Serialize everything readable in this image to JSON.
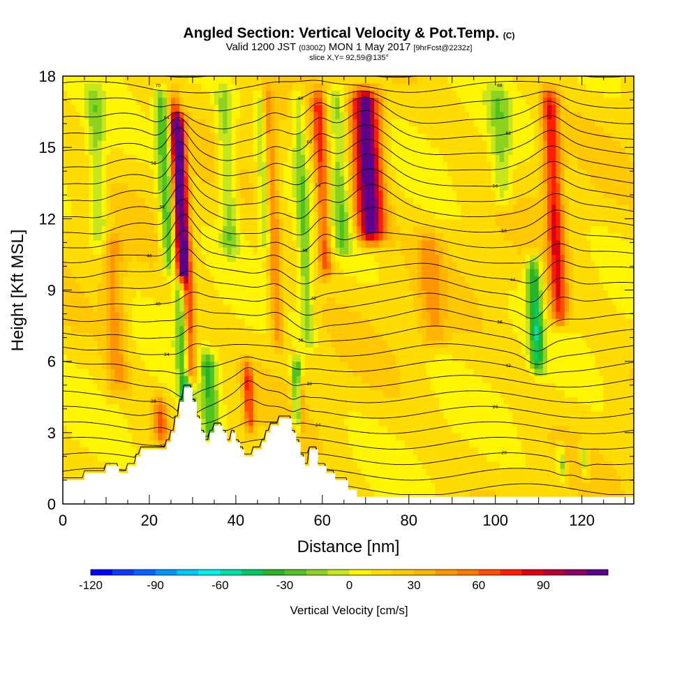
{
  "header": {
    "title": "Angled Section: Vertical Velocity & Pot.Temp.",
    "title_suffix": "(C)",
    "valid_prefix": "Valid 1200 JST",
    "valid_zulu": "(0300Z)",
    "valid_date": "MON 1 May 2017",
    "forecast": "[9hrFcst@2232z]",
    "slice": "slice X,Y= 92,59@135°"
  },
  "chart_data": {
    "type": "heatmap",
    "title": "Angled Section: Vertical Velocity & Pot.Temp.",
    "xlabel": "Distance [nm]",
    "ylabel": "Height [Kft MSL]",
    "xlim": [
      0,
      132
    ],
    "ylim": [
      0,
      18
    ],
    "x_ticks": [
      0,
      20,
      40,
      60,
      80,
      100,
      120
    ],
    "y_ticks": [
      0,
      3,
      6,
      9,
      12,
      15,
      18
    ],
    "colorbar": {
      "label": "Vertical Velocity [cm/s]",
      "min": -120,
      "max": 110,
      "step": 10,
      "ticks": [
        -120,
        -90,
        -60,
        -30,
        0,
        30,
        60,
        90
      ],
      "colors": [
        "#0000ff",
        "#0a3cf5",
        "#0064ff",
        "#0096ff",
        "#00c8ff",
        "#00f0f0",
        "#00dcaa",
        "#00c864",
        "#28b428",
        "#50c31e",
        "#8cd21e",
        "#c8e61e",
        "#fff500",
        "#ffdc00",
        "#ffc800",
        "#ffb400",
        "#ff9600",
        "#ff7800",
        "#ff5000",
        "#ff1e00",
        "#dc0014",
        "#b40032",
        "#8c0064",
        "#5a008c"
      ]
    },
    "updraft_bands": [
      {
        "x": 29.5,
        "yb": 4.5,
        "yt": 17.0,
        "w": 1.6,
        "amp": 95
      },
      {
        "x": 71.5,
        "yb": 10.5,
        "yt": 18.0,
        "w": 3.2,
        "amp": 110
      },
      {
        "x": 55.5,
        "yb": 2.5,
        "yt": 6.0,
        "w": 0.9,
        "amp": 70
      },
      {
        "x": 43.5,
        "yb": 2.5,
        "yt": 6.5,
        "w": 1.2,
        "amp": 55
      },
      {
        "x": 115.0,
        "yb": 7.0,
        "yt": 18.0,
        "w": 2.0,
        "amp": 65
      },
      {
        "x": 61.0,
        "yb": 9.0,
        "yt": 18.0,
        "w": 1.5,
        "amp": 55
      },
      {
        "x": 23.0,
        "yb": 2.0,
        "yt": 5.0,
        "w": 1.5,
        "amp": 45
      },
      {
        "x": 27.5,
        "yb": 9.0,
        "yt": 18.0,
        "w": 1.5,
        "amp": 40
      },
      {
        "x": 13.0,
        "yb": 4.0,
        "yt": 12.0,
        "w": 2.5,
        "amp": 30
      },
      {
        "x": 86.0,
        "yb": 6.0,
        "yt": 12.0,
        "w": 3.0,
        "amp": 25
      },
      {
        "x": 50.0,
        "yb": 6.0,
        "yt": 18.0,
        "w": 1.5,
        "amp": 40
      }
    ],
    "downdraft_bands": [
      {
        "x": 29.0,
        "yb": 3.0,
        "yt": 10.0,
        "w": 1.5,
        "amp": -85
      },
      {
        "x": 55.0,
        "yb": 2.5,
        "yt": 6.5,
        "w": 1.2,
        "amp": -75
      },
      {
        "x": 25.0,
        "yb": 9.0,
        "yt": 18.0,
        "w": 1.8,
        "amp": -45
      },
      {
        "x": 34.5,
        "yb": 2.0,
        "yt": 7.0,
        "w": 2.0,
        "amp": -40
      },
      {
        "x": 110.0,
        "yb": 5.0,
        "yt": 11.0,
        "w": 1.6,
        "amp": -55
      },
      {
        "x": 102.0,
        "yb": 12.0,
        "yt": 18.0,
        "w": 2.5,
        "amp": -25
      },
      {
        "x": 65.0,
        "yb": 10.0,
        "yt": 18.0,
        "w": 2.0,
        "amp": -30
      },
      {
        "x": 39.0,
        "yb": 10.0,
        "yt": 18.0,
        "w": 2.0,
        "amp": -30
      },
      {
        "x": 47.5,
        "yb": 10.0,
        "yt": 18.0,
        "w": 1.5,
        "amp": -30
      },
      {
        "x": 115.5,
        "yb": 0.5,
        "yt": 3.0,
        "w": 0.8,
        "amp": -40
      },
      {
        "x": 121.0,
        "yb": 0.5,
        "yt": 3.0,
        "w": 0.8,
        "amp": -35
      },
      {
        "x": 57.0,
        "yb": 6.0,
        "yt": 18.0,
        "w": 1.5,
        "amp": -30
      },
      {
        "x": 9.0,
        "yb": 10.0,
        "yt": 18.0,
        "w": 2.0,
        "amp": -25
      }
    ],
    "terrain": [
      [
        0,
        1.0
      ],
      [
        5,
        1.0
      ],
      [
        5,
        1.3
      ],
      [
        10,
        1.3
      ],
      [
        10,
        1.6
      ],
      [
        13,
        1.6
      ],
      [
        13,
        1.3
      ],
      [
        15,
        1.3
      ],
      [
        15,
        1.6
      ],
      [
        17,
        1.6
      ],
      [
        17,
        2.0
      ],
      [
        18,
        2.0
      ],
      [
        18,
        2.3
      ],
      [
        24,
        2.3
      ],
      [
        24,
        2.6
      ],
      [
        25,
        2.6
      ],
      [
        25,
        3.0
      ],
      [
        26,
        3.0
      ],
      [
        26,
        3.6
      ],
      [
        27,
        3.6
      ],
      [
        27,
        4.3
      ],
      [
        28,
        4.3
      ],
      [
        28,
        4.9
      ],
      [
        30,
        4.9
      ],
      [
        30,
        4.3
      ],
      [
        31,
        4.3
      ],
      [
        31,
        3.6
      ],
      [
        32,
        3.6
      ],
      [
        32,
        3.0
      ],
      [
        33,
        3.0
      ],
      [
        33,
        2.6
      ],
      [
        34,
        2.6
      ],
      [
        34,
        3.0
      ],
      [
        35,
        3.0
      ],
      [
        35,
        3.3
      ],
      [
        37,
        3.3
      ],
      [
        37,
        3.0
      ],
      [
        38,
        3.0
      ],
      [
        38,
        2.6
      ],
      [
        39,
        2.6
      ],
      [
        39,
        3.0
      ],
      [
        40,
        3.0
      ],
      [
        40,
        2.6
      ],
      [
        41,
        2.6
      ],
      [
        41,
        2.3
      ],
      [
        42,
        2.3
      ],
      [
        42,
        2.0
      ],
      [
        44,
        2.0
      ],
      [
        44,
        2.3
      ],
      [
        46,
        2.3
      ],
      [
        46,
        2.6
      ],
      [
        47,
        2.6
      ],
      [
        47,
        3.0
      ],
      [
        48,
        3.0
      ],
      [
        48,
        3.3
      ],
      [
        50,
        3.3
      ],
      [
        50,
        3.6
      ],
      [
        53,
        3.6
      ],
      [
        53,
        3.0
      ],
      [
        54,
        3.0
      ],
      [
        54,
        2.6
      ],
      [
        55,
        2.6
      ],
      [
        55,
        2.0
      ],
      [
        56,
        2.0
      ],
      [
        56,
        1.6
      ],
      [
        57,
        1.6
      ],
      [
        57,
        2.3
      ],
      [
        59,
        2.3
      ],
      [
        59,
        1.6
      ],
      [
        61,
        1.6
      ],
      [
        61,
        1.3
      ],
      [
        63,
        1.3
      ],
      [
        63,
        1.0
      ],
      [
        66,
        1.0
      ],
      [
        66,
        0.6
      ],
      [
        68,
        0.6
      ],
      [
        68,
        0.3
      ],
      [
        132,
        0.3
      ]
    ],
    "theta_levels": [
      16,
      18,
      20,
      22,
      24,
      26,
      28,
      30,
      32,
      34,
      36,
      38,
      40,
      42,
      44,
      46,
      48,
      50,
      52,
      54,
      56,
      58,
      60,
      62,
      64,
      66,
      68,
      70
    ]
  },
  "colors": {
    "background": "#ffffff",
    "contour": "#000000",
    "terrain": "#ffffff"
  }
}
